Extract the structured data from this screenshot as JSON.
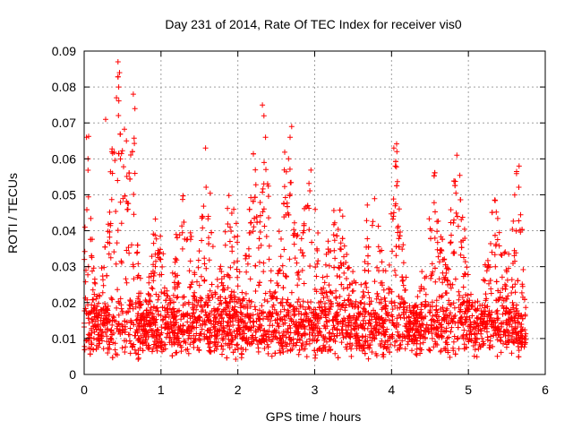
{
  "chart_data": {
    "type": "scatter",
    "title": "Day 231 of 2014, Rate Of TEC Index for receiver vis0",
    "xlabel": "GPS time / hours",
    "ylabel": "ROTI / TECUs",
    "xlim": [
      0,
      6
    ],
    "ylim": [
      0,
      0.09
    ],
    "xticks": [
      "0",
      "1",
      "2",
      "3",
      "4",
      "5",
      "6"
    ],
    "yticks": [
      "0",
      "0.01",
      "0.02",
      "0.03",
      "0.04",
      "0.05",
      "0.06",
      "0.07",
      "0.08",
      "0.09"
    ],
    "grid": true,
    "marker": "+",
    "color": "#ff0000",
    "series": [
      {
        "name": "ROTI",
        "x_range_hours": [
          0.0,
          5.75
        ],
        "baseline_roti": 0.013,
        "notable_points": [
          {
            "x": 0.03,
            "y": 0.066
          },
          {
            "x": 0.05,
            "y": 0.06
          },
          {
            "x": 0.28,
            "y": 0.071
          },
          {
            "x": 0.36,
            "y": 0.062
          },
          {
            "x": 0.44,
            "y": 0.087
          },
          {
            "x": 0.46,
            "y": 0.084
          },
          {
            "x": 0.45,
            "y": 0.08
          },
          {
            "x": 0.42,
            "y": 0.077
          },
          {
            "x": 0.55,
            "y": 0.065
          },
          {
            "x": 0.64,
            "y": 0.078
          },
          {
            "x": 0.66,
            "y": 0.074
          },
          {
            "x": 1.58,
            "y": 0.063
          },
          {
            "x": 2.32,
            "y": 0.075
          },
          {
            "x": 2.34,
            "y": 0.072
          },
          {
            "x": 2.36,
            "y": 0.066
          },
          {
            "x": 2.7,
            "y": 0.069
          },
          {
            "x": 2.68,
            "y": 0.066
          },
          {
            "x": 2.66,
            "y": 0.06
          },
          {
            "x": 4.03,
            "y": 0.063
          },
          {
            "x": 4.07,
            "y": 0.062
          },
          {
            "x": 4.05,
            "y": 0.058
          },
          {
            "x": 4.85,
            "y": 0.061
          },
          {
            "x": 5.66,
            "y": 0.058
          }
        ],
        "bursts": [
          {
            "center": 0.05,
            "width": 0.07,
            "peak": 0.06
          },
          {
            "center": 0.45,
            "width": 0.16,
            "peak": 0.08
          },
          {
            "center": 0.62,
            "width": 0.08,
            "peak": 0.07
          },
          {
            "center": 0.95,
            "width": 0.1,
            "peak": 0.042
          },
          {
            "center": 1.3,
            "width": 0.15,
            "peak": 0.048
          },
          {
            "center": 1.58,
            "width": 0.13,
            "peak": 0.056
          },
          {
            "center": 1.9,
            "width": 0.15,
            "peak": 0.046
          },
          {
            "center": 2.22,
            "width": 0.12,
            "peak": 0.055
          },
          {
            "center": 2.36,
            "width": 0.06,
            "peak": 0.068
          },
          {
            "center": 2.65,
            "width": 0.15,
            "peak": 0.058
          },
          {
            "center": 2.93,
            "width": 0.14,
            "peak": 0.05
          },
          {
            "center": 3.3,
            "width": 0.2,
            "peak": 0.042
          },
          {
            "center": 3.76,
            "width": 0.14,
            "peak": 0.048
          },
          {
            "center": 4.05,
            "width": 0.1,
            "peak": 0.06
          },
          {
            "center": 4.55,
            "width": 0.14,
            "peak": 0.05
          },
          {
            "center": 4.85,
            "width": 0.12,
            "peak": 0.057
          },
          {
            "center": 5.35,
            "width": 0.14,
            "peak": 0.048
          },
          {
            "center": 5.62,
            "width": 0.1,
            "peak": 0.055
          }
        ]
      }
    ]
  }
}
